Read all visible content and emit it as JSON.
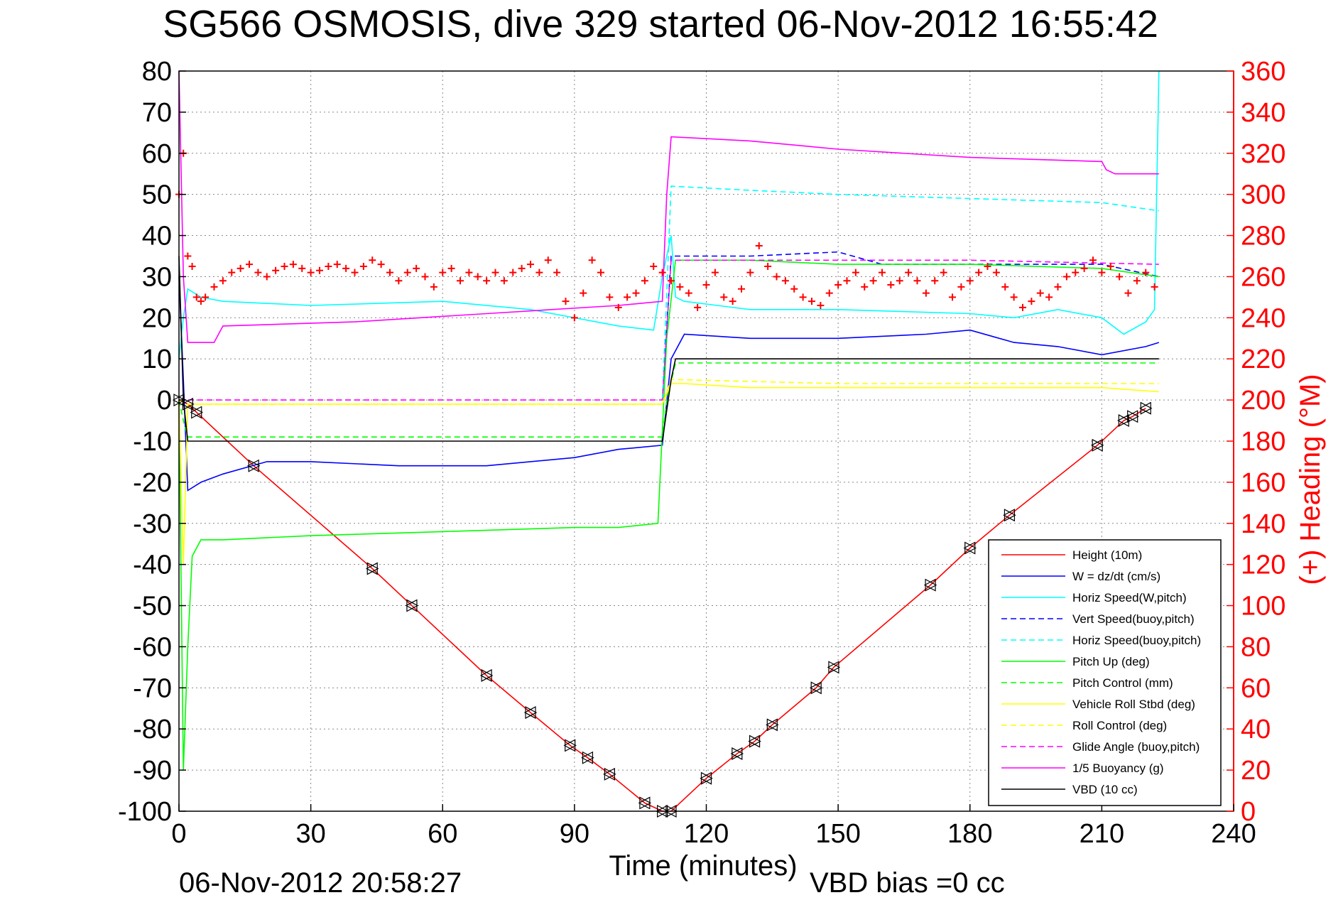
{
  "chart_data": {
    "type": "line",
    "title": "SG566 OSMOSIS, dive 329 started 06-Nov-2012 16:55:42",
    "xlabel": "Time (minutes)",
    "ylabel_right": "(+) Heading (°M)",
    "footer_left": "06-Nov-2012 20:58:27",
    "footer_right": "VBD bias =0 cc",
    "xlim": [
      0,
      240
    ],
    "ylim": [
      -100,
      80
    ],
    "ylim_right": [
      0,
      360
    ],
    "x_ticks": [
      0,
      30,
      60,
      90,
      120,
      150,
      180,
      210,
      240
    ],
    "x_tick_labels": [
      "0",
      "30",
      "60",
      "90",
      "120",
      "150",
      "180",
      "210",
      "240"
    ],
    "y_ticks": [
      -100,
      -90,
      -80,
      -70,
      -60,
      -50,
      -40,
      -30,
      -20,
      -10,
      0,
      10,
      20,
      30,
      40,
      50,
      60,
      70,
      80
    ],
    "y_tick_labels": [
      "-100",
      "-90",
      "-80",
      "-70",
      "-60",
      "-50",
      "-40",
      "-30",
      "-20",
      "-10",
      "0",
      "10",
      "20",
      "30",
      "40",
      "50",
      "60",
      "70",
      "80"
    ],
    "y_right_ticks": [
      0,
      20,
      40,
      60,
      80,
      100,
      120,
      140,
      160,
      180,
      200,
      220,
      240,
      260,
      280,
      300,
      320,
      340,
      360
    ],
    "y_right_tick_labels": [
      "0",
      "20",
      "40",
      "60",
      "80",
      "100",
      "120",
      "140",
      "160",
      "180",
      "200",
      "220",
      "240",
      "260",
      "280",
      "300",
      "320",
      "340",
      "360"
    ],
    "grid": true,
    "legend_position": "bottom-right",
    "series": [
      {
        "name": "Height (10m)",
        "color": "#ff0000",
        "style": "solid",
        "x": [
          0,
          2,
          4,
          17,
          44,
          53,
          70,
          80,
          89,
          93,
          98,
          106,
          110,
          112,
          120,
          127,
          131,
          135,
          145,
          149,
          171,
          180,
          189,
          209,
          215,
          217,
          220
        ],
        "y": [
          0,
          -1,
          -3,
          -16,
          -41,
          -50,
          -67,
          -76,
          -84,
          -87,
          -91,
          -98,
          -100,
          -100,
          -92,
          -86,
          -83,
          -79,
          -70,
          -65,
          -45,
          -36,
          -28,
          -11,
          -5,
          -4,
          -2
        ]
      },
      {
        "name": "W = dz/dt (cm/s)",
        "color": "#0000ff",
        "style": "solid",
        "x": [
          0,
          1,
          2,
          5,
          10,
          20,
          30,
          50,
          70,
          90,
          100,
          110,
          112,
          115,
          130,
          150,
          170,
          180,
          190,
          200,
          210,
          220,
          223
        ],
        "y": [
          30,
          5,
          -22,
          -20,
          -18,
          -15,
          -15,
          -16,
          -16,
          -14,
          -12,
          -11,
          10,
          16,
          15,
          15,
          16,
          17,
          14,
          13,
          11,
          13,
          14
        ]
      },
      {
        "name": "Horiz Speed(W,pitch)",
        "color": "#00ffff",
        "style": "solid",
        "x": [
          0,
          1,
          2,
          5,
          10,
          30,
          60,
          80,
          100,
          108,
          110,
          112,
          113,
          115,
          130,
          150,
          180,
          190,
          200,
          210,
          215,
          220,
          222,
          223
        ],
        "y": [
          10,
          20,
          27,
          25,
          24,
          23,
          24,
          22,
          18,
          17,
          30,
          40,
          25,
          24,
          22,
          22,
          21,
          20,
          22,
          20,
          16,
          19,
          22,
          80
        ]
      },
      {
        "name": "Vert Speed(buoy,pitch)",
        "color": "#0000ff",
        "style": "dashed",
        "x": [
          110,
          112,
          130,
          150,
          160,
          180,
          190,
          210,
          223
        ],
        "y": [
          0,
          35,
          35,
          36,
          33,
          33,
          33,
          33,
          30
        ]
      },
      {
        "name": "Horiz Speed(buoy,pitch)",
        "color": "#00ffff",
        "style": "dashed",
        "x": [
          110,
          112,
          130,
          150,
          180,
          210,
          223
        ],
        "y": [
          0,
          52,
          51,
          50,
          49,
          48,
          46
        ]
      },
      {
        "name": "Pitch Up (deg)",
        "color": "#00ff00",
        "style": "solid",
        "x": [
          0,
          1,
          2,
          3,
          5,
          10,
          30,
          60,
          90,
          100,
          109,
          111,
          113,
          130,
          150,
          180,
          210,
          223
        ],
        "y": [
          0,
          -90,
          -60,
          -38,
          -34,
          -34,
          -33,
          -32,
          -31,
          -31,
          -30,
          15,
          34,
          34,
          33,
          33,
          32,
          30
        ]
      },
      {
        "name": "Pitch Control (mm)",
        "color": "#00ff00",
        "style": "dashed",
        "x": [
          0,
          1,
          2,
          5,
          30,
          60,
          90,
          110,
          111,
          113,
          150,
          180,
          210,
          223
        ],
        "y": [
          0,
          -5,
          -9,
          -9,
          -9,
          -9,
          -9,
          -9,
          0,
          9,
          9,
          9,
          9,
          9
        ]
      },
      {
        "name": "Vehicle Roll Stbd (deg)",
        "color": "#ffff00",
        "style": "solid",
        "x": [
          0,
          1,
          2,
          5,
          20,
          40,
          60,
          80,
          100,
          110,
          112,
          115,
          130,
          150,
          170,
          190,
          210,
          223
        ],
        "y": [
          0,
          -40,
          -1,
          -1,
          -1,
          -1,
          -1,
          -1,
          -1,
          -1,
          4,
          4,
          3,
          3,
          3,
          3,
          3,
          2
        ]
      },
      {
        "name": "Roll Control (deg)",
        "color": "#ffff00",
        "style": "dashed",
        "x": [
          0,
          2,
          5,
          50,
          110,
          112,
          150,
          180,
          223
        ],
        "y": [
          0,
          -1,
          -1,
          -1,
          -1,
          5,
          4,
          4,
          4
        ]
      },
      {
        "name": "Glide Angle (buoy,pitch)",
        "color": "#ff00ff",
        "style": "dashed",
        "x": [
          0,
          2,
          5,
          50,
          110,
          112,
          150,
          180,
          223
        ],
        "y": [
          0,
          0,
          0,
          0,
          0,
          34,
          34,
          34,
          33
        ]
      },
      {
        "name": "1/5 Buoyancy (g)",
        "color": "#ff00ff",
        "style": "solid",
        "x": [
          0,
          1,
          2,
          5,
          8,
          10,
          40,
          70,
          100,
          110,
          111,
          112,
          130,
          150,
          180,
          210,
          211,
          213,
          223
        ],
        "y": [
          80,
          30,
          14,
          14,
          14,
          18,
          19,
          21,
          23,
          24,
          50,
          64,
          63,
          61,
          59,
          58,
          56,
          55,
          55
        ]
      },
      {
        "name": "VBD (10 cc)",
        "color": "#000000",
        "style": "solid",
        "x": [
          0,
          1,
          2,
          5,
          30,
          60,
          90,
          110,
          112,
          113,
          150,
          180,
          210,
          223
        ],
        "y": [
          35,
          0,
          -10,
          -10,
          -10,
          -10,
          -10,
          -10,
          5,
          10,
          10,
          10,
          10,
          10
        ]
      },
      {
        "name": "(+) Heading",
        "color": "#ff0000",
        "style": "markers",
        "axis": "right",
        "x": [
          0,
          1,
          2,
          3,
          4,
          5,
          6,
          8,
          10,
          12,
          14,
          16,
          18,
          20,
          22,
          24,
          26,
          28,
          30,
          32,
          34,
          36,
          38,
          40,
          42,
          44,
          46,
          48,
          50,
          52,
          54,
          56,
          58,
          60,
          62,
          64,
          66,
          68,
          70,
          72,
          74,
          76,
          78,
          80,
          82,
          84,
          86,
          88,
          90,
          92,
          94,
          96,
          98,
          100,
          102,
          104,
          106,
          108,
          110,
          112,
          114,
          116,
          118,
          120,
          122,
          124,
          126,
          128,
          130,
          132,
          134,
          136,
          138,
          140,
          142,
          144,
          146,
          148,
          150,
          152,
          154,
          156,
          158,
          160,
          162,
          164,
          166,
          168,
          170,
          172,
          174,
          176,
          178,
          180,
          182,
          184,
          186,
          188,
          190,
          192,
          194,
          196,
          198,
          200,
          202,
          204,
          206,
          208,
          210,
          212,
          214,
          216,
          218,
          220,
          222
        ],
        "y": [
          300,
          320,
          270,
          265,
          250,
          248,
          250,
          255,
          258,
          262,
          264,
          266,
          262,
          260,
          263,
          265,
          266,
          264,
          262,
          263,
          265,
          266,
          264,
          262,
          265,
          268,
          266,
          262,
          258,
          262,
          264,
          260,
          255,
          262,
          264,
          258,
          262,
          260,
          258,
          262,
          258,
          262,
          264,
          266,
          262,
          268,
          262,
          248,
          240,
          252,
          268,
          262,
          250,
          245,
          250,
          252,
          258,
          265,
          262,
          258,
          255,
          252,
          245,
          256,
          262,
          250,
          248,
          254,
          262,
          275,
          265,
          260,
          258,
          254,
          250,
          248,
          246,
          252,
          256,
          258,
          262,
          255,
          258,
          262,
          256,
          258,
          262,
          258,
          252,
          258,
          262,
          250,
          255,
          258,
          262,
          265,
          262,
          255,
          250,
          245,
          248,
          252,
          250,
          255,
          260,
          262,
          264,
          268,
          262,
          265,
          260,
          252,
          258,
          262,
          255
        ]
      }
    ]
  }
}
